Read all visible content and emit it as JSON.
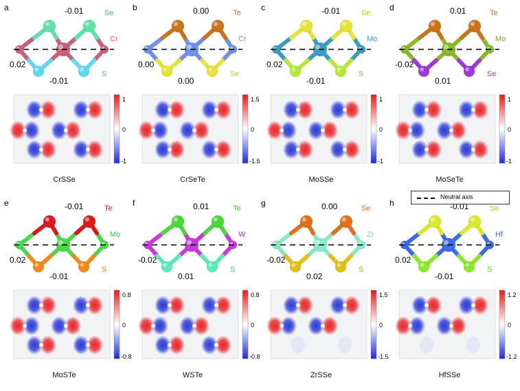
{
  "legend": {
    "neutral_axis_label": "Neutral axis"
  },
  "panels": [
    {
      "letter": "a",
      "compound": "CrSSe",
      "top_atom": "Se",
      "metal": "Cr",
      "bottom_atom": "S",
      "v_top": "-0.01",
      "v_mid": "0.02",
      "v_bot": "-0.01",
      "colors": {
        "top": "#5fe0a8",
        "metal": "#c8607a",
        "bottom": "#5fd8f0"
      },
      "label_colors": {
        "top": "#3fbf8a",
        "metal": "#c8607a",
        "bottom": "#2fb8e0"
      },
      "cbar": {
        "max": "1",
        "mid": "0",
        "min": "-1"
      }
    },
    {
      "letter": "b",
      "compound": "CrSeTe",
      "top_atom": "Te",
      "metal": "Cr",
      "bottom_atom": "Se",
      "v_top": "0.00",
      "v_mid": "0.00",
      "v_bot": "0.00",
      "colors": {
        "top": "#c8741a",
        "metal": "#6f8fe8",
        "bottom": "#e6e23a"
      },
      "label_colors": {
        "top": "#c8741a",
        "metal": "#6f8fe8",
        "bottom": "#c9c21a"
      },
      "cbar": {
        "max": "1.5",
        "mid": "0",
        "min": "-1.5"
      }
    },
    {
      "letter": "c",
      "compound": "MoSSe",
      "top_atom": "Se",
      "metal": "Mo",
      "bottom_atom": "S",
      "v_top": "-0.01",
      "v_mid": "0.02",
      "v_bot": "-0.01",
      "colors": {
        "top": "#e6e23a",
        "metal": "#3a9cbf",
        "bottom": "#b6e83a"
      },
      "label_colors": {
        "top": "#c9c21a",
        "metal": "#3a9cbf",
        "bottom": "#8ac21a"
      },
      "cbar": {
        "max": "1",
        "mid": "0",
        "min": "-1"
      }
    },
    {
      "letter": "d",
      "compound": "MoSeTe",
      "top_atom": "Te",
      "metal": "Mo",
      "bottom_atom": "Se",
      "v_top": "0.01",
      "v_mid": "-0.02",
      "v_bot": "0.01",
      "colors": {
        "top": "#c8741a",
        "metal": "#8ab82a",
        "bottom": "#9a3ad8"
      },
      "label_colors": {
        "top": "#c8741a",
        "metal": "#7aa81a",
        "bottom": "#9a3ad8"
      },
      "cbar": {
        "max": "1",
        "mid": "0",
        "min": "-1"
      }
    },
    {
      "letter": "e",
      "compound": "MoSTe",
      "top_atom": "Te",
      "metal": "Mo",
      "bottom_atom": "S",
      "v_top": "-0.01",
      "v_mid": "0.02",
      "v_bot": "-0.01",
      "colors": {
        "top": "#d81a1a",
        "metal": "#4ad84a",
        "bottom": "#ef8a1a"
      },
      "label_colors": {
        "top": "#d81a1a",
        "metal": "#3ac83a",
        "bottom": "#ef8a1a"
      },
      "cbar": {
        "max": "0.8",
        "mid": "0",
        "min": "-0.8"
      }
    },
    {
      "letter": "f",
      "compound": "WSTe",
      "top_atom": "Te",
      "metal": "W",
      "bottom_atom": "S",
      "v_top": "0.01",
      "v_mid": "-0.02",
      "v_bot": "0.01",
      "colors": {
        "top": "#4ad83a",
        "metal": "#c83ad8",
        "bottom": "#5fe8b8"
      },
      "label_colors": {
        "top": "#3ac82a",
        "metal": "#b82ac8",
        "bottom": "#3fc898"
      },
      "cbar": {
        "max": "0.8",
        "mid": "0",
        "min": "-0.8"
      }
    },
    {
      "letter": "g",
      "compound": "ZrSSe",
      "top_atom": "Se",
      "metal": "Zr",
      "bottom_atom": "S",
      "v_top": "0.00",
      "v_mid": "-0.02",
      "v_bot": "0.02",
      "colors": {
        "top": "#e0701a",
        "metal": "#8ae8c8",
        "bottom": "#e0c01a"
      },
      "label_colors": {
        "top": "#e0701a",
        "metal": "#6ad8b8",
        "bottom": "#c8a81a"
      },
      "cbar": {
        "max": "1.5",
        "mid": "0",
        "min": "-1.5"
      }
    },
    {
      "letter": "h",
      "compound": "HfSSe",
      "top_atom": "Se",
      "metal": "Hf",
      "bottom_atom": "S",
      "v_top": "-0.01",
      "v_mid": "0.02",
      "v_bot": "-0.01",
      "colors": {
        "top": "#d8e82a",
        "metal": "#3a6ae8",
        "bottom": "#8ae82a"
      },
      "label_colors": {
        "top": "#b8c81a",
        "metal": "#3a6ae8",
        "bottom": "#6ac81a"
      },
      "cbar": {
        "max": "1.2",
        "mid": "0",
        "min": "-1.2"
      }
    }
  ]
}
